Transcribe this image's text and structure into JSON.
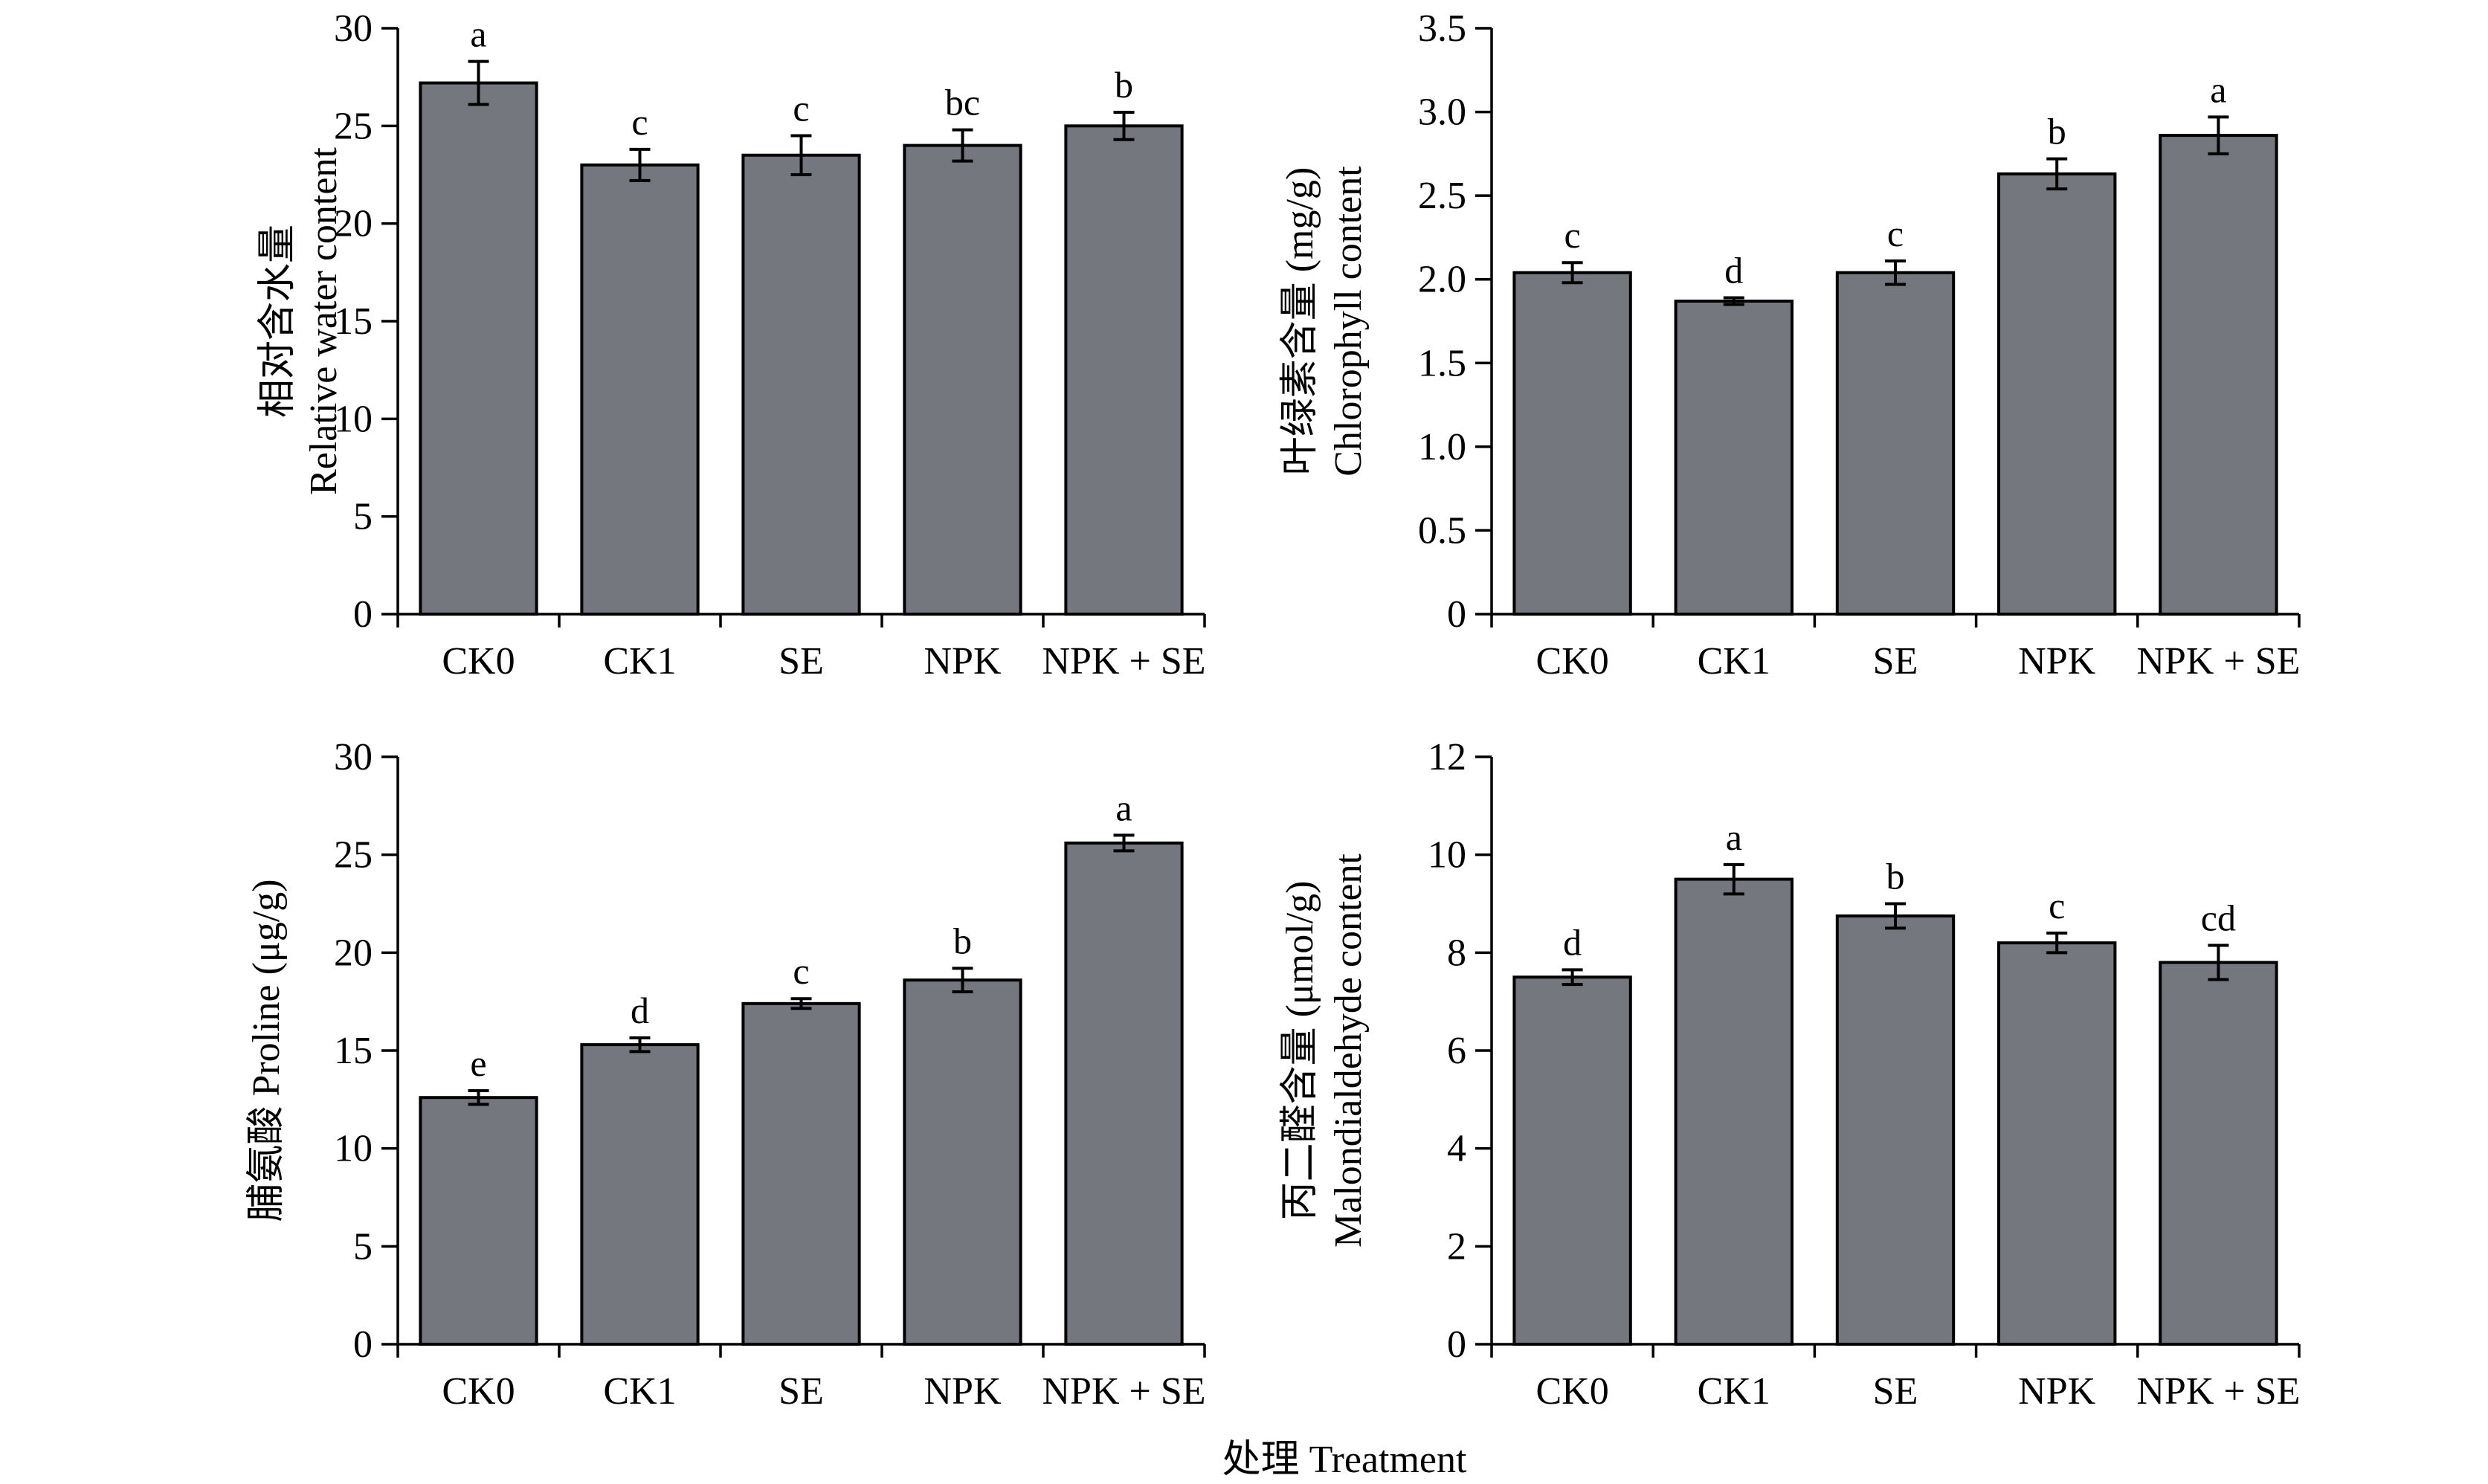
{
  "figure": {
    "shared_xlabel": "处理 Treatment"
  },
  "chart_data": [
    {
      "type": "bar",
      "categories": [
        "CK0",
        "CK1",
        "SE",
        "NPK",
        "NPK + SE"
      ],
      "ylabel_cn": "相对含水量",
      "ylabel_en": "Relative water content",
      "ylim": [
        0,
        30
      ],
      "yticks": [
        "0",
        "5",
        "10",
        "15",
        "20",
        "25",
        "30"
      ],
      "values": [
        27.2,
        23.0,
        23.5,
        24.0,
        25.0
      ],
      "errors": [
        1.1,
        0.8,
        1.0,
        0.8,
        0.7
      ],
      "labels": [
        "a",
        "c",
        "c",
        "bc",
        "b"
      ],
      "colors": {
        "bar": "#75777e",
        "edge": "#000000"
      }
    },
    {
      "type": "bar",
      "categories": [
        "CK0",
        "CK1",
        "SE",
        "NPK",
        "NPK + SE"
      ],
      "ylabel_cn": "叶绿素含量 (mg/g)",
      "ylabel_en": "Chlorophyll content",
      "ylim": [
        0,
        3.5
      ],
      "yticks": [
        "0",
        "0.5",
        "1.0",
        "1.5",
        "2.0",
        "2.5",
        "3.0",
        "3.5"
      ],
      "values": [
        2.04,
        1.87,
        2.04,
        2.63,
        2.86
      ],
      "errors": [
        0.06,
        0.02,
        0.07,
        0.09,
        0.11
      ],
      "labels": [
        "c",
        "d",
        "c",
        "b",
        "a"
      ],
      "colors": {
        "bar": "#75777e",
        "edge": "#000000"
      }
    },
    {
      "type": "bar",
      "categories": [
        "CK0",
        "CK1",
        "SE",
        "NPK",
        "NPK + SE"
      ],
      "ylabel_cn": "脯氨酸 Proline (μg/g)",
      "ylabel_en": "",
      "ylim": [
        0,
        30
      ],
      "yticks": [
        "0",
        "5",
        "10",
        "15",
        "20",
        "25",
        "30"
      ],
      "values": [
        12.6,
        15.3,
        17.4,
        18.6,
        25.6
      ],
      "errors": [
        0.35,
        0.35,
        0.25,
        0.6,
        0.4
      ],
      "labels": [
        "e",
        "d",
        "c",
        "b",
        "a"
      ],
      "colors": {
        "bar": "#75777e",
        "edge": "#000000"
      }
    },
    {
      "type": "bar",
      "categories": [
        "CK0",
        "CK1",
        "SE",
        "NPK",
        "NPK + SE"
      ],
      "ylabel_cn": "丙二醛含量 (μmol/g)",
      "ylabel_en": "Malondialdehyde content",
      "ylim": [
        0,
        12
      ],
      "yticks": [
        "0",
        "2",
        "4",
        "6",
        "8",
        "10",
        "12"
      ],
      "values": [
        7.5,
        9.5,
        8.75,
        8.2,
        7.8
      ],
      "errors": [
        0.15,
        0.3,
        0.25,
        0.2,
        0.35
      ],
      "labels": [
        "d",
        "a",
        "b",
        "c",
        "cd"
      ],
      "colors": {
        "bar": "#75777e",
        "edge": "#000000"
      }
    }
  ]
}
